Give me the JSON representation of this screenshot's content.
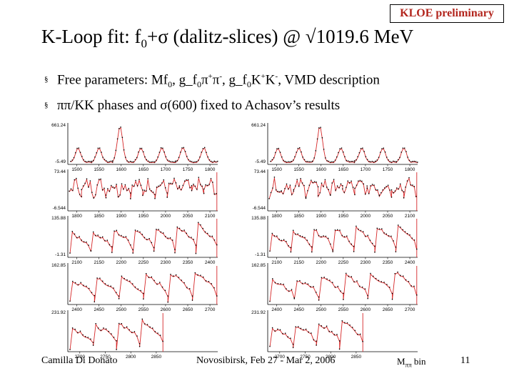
{
  "badge": "KLOE preliminary",
  "title": {
    "prefix": "K-Loop fit: f",
    "sub": "0",
    "suffix": "+σ (dalitz-slices) @ √1019.6 MeV"
  },
  "bullets": [
    {
      "marker": "§",
      "parts": [
        "Free parameters: Mf",
        "0",
        ", g_f",
        "0",
        "π",
        "+",
        "π",
        "-",
        ", g_f",
        "0",
        "K",
        "+",
        "K",
        "-",
        ", VMD description"
      ]
    },
    {
      "marker": "§",
      "text": "ππ/KK phases and σ(600) fixed to Achasov’s results"
    }
  ],
  "footer": {
    "author": "Camilla Di Donato",
    "conference": "Novosibirsk, Feb 27 - Mar 2, 2006",
    "page": "11",
    "axis_label": "M",
    "axis_label_sub": "ππ",
    "axis_label_suffix": " bin"
  },
  "chart_data": {
    "type": "scatter",
    "description_series": "data points with red fit curve, two columns of five panels",
    "panels": [
      {
        "column": "left",
        "row": 1,
        "ymax": "661.24",
        "ymin": "-5.49",
        "xticks": [
          "1500",
          "1550",
          "1600",
          "1650",
          "1700",
          "1750",
          "1800"
        ],
        "style": "peaks",
        "nsegments": 7
      },
      {
        "column": "left",
        "row": 2,
        "ymax": "73.44",
        "ymin": "-6.544",
        "xticks": [
          "1800",
          "1850",
          "1900",
          "1950",
          "2000",
          "2050",
          "2100"
        ],
        "style": "noisy",
        "nsegments": 12
      },
      {
        "column": "left",
        "row": 3,
        "ymax": "135.88",
        "ymin": "-1.31",
        "xticks": [
          "2100",
          "2150",
          "2200",
          "2250",
          "2300",
          "2350",
          "2400"
        ],
        "style": "ramp",
        "nsegments": 7
      },
      {
        "column": "left",
        "row": 4,
        "ymax": "162.85",
        "ymin": "",
        "xticks": [
          "2400",
          "2450",
          "2500",
          "2550",
          "2600",
          "2650",
          "2700"
        ],
        "style": "ramp",
        "nsegments": 6
      },
      {
        "column": "left",
        "row": 5,
        "ymax": "231.92",
        "ymin": "",
        "xticks": [
          "2700",
          "2750",
          "2800",
          "2850"
        ],
        "style": "ramp",
        "nsegments": 4
      },
      {
        "column": "right",
        "row": 1,
        "ymax": "661.24",
        "ymin": "-5.49",
        "xticks": [
          "1500",
          "1550",
          "1600",
          "1650",
          "1700",
          "1750",
          "1800"
        ],
        "style": "peaks",
        "nsegments": 7
      },
      {
        "column": "right",
        "row": 2,
        "ymax": "73.44",
        "ymin": "-6.544",
        "xticks": [
          "1800",
          "1850",
          "1900",
          "1950",
          "2000",
          "2050",
          "2100"
        ],
        "style": "noisy",
        "nsegments": 12
      },
      {
        "column": "right",
        "row": 3,
        "ymax": "135.88",
        "ymin": "-1.31",
        "xticks": [
          "2100",
          "2150",
          "2200",
          "2250",
          "2300",
          "2350",
          "2400"
        ],
        "style": "ramp",
        "nsegments": 7
      },
      {
        "column": "right",
        "row": 4,
        "ymax": "162.85",
        "ymin": "",
        "xticks": [
          "2400",
          "2450",
          "2500",
          "2550",
          "2600",
          "2650",
          "2700"
        ],
        "style": "ramp",
        "nsegments": 6
      },
      {
        "column": "right",
        "row": 5,
        "ymax": "231.92",
        "ymin": "",
        "xticks": [
          "2700",
          "2750",
          "2800",
          "2850"
        ],
        "style": "ramp",
        "nsegments": 4
      }
    ],
    "xlabel": "Mππ bin"
  }
}
